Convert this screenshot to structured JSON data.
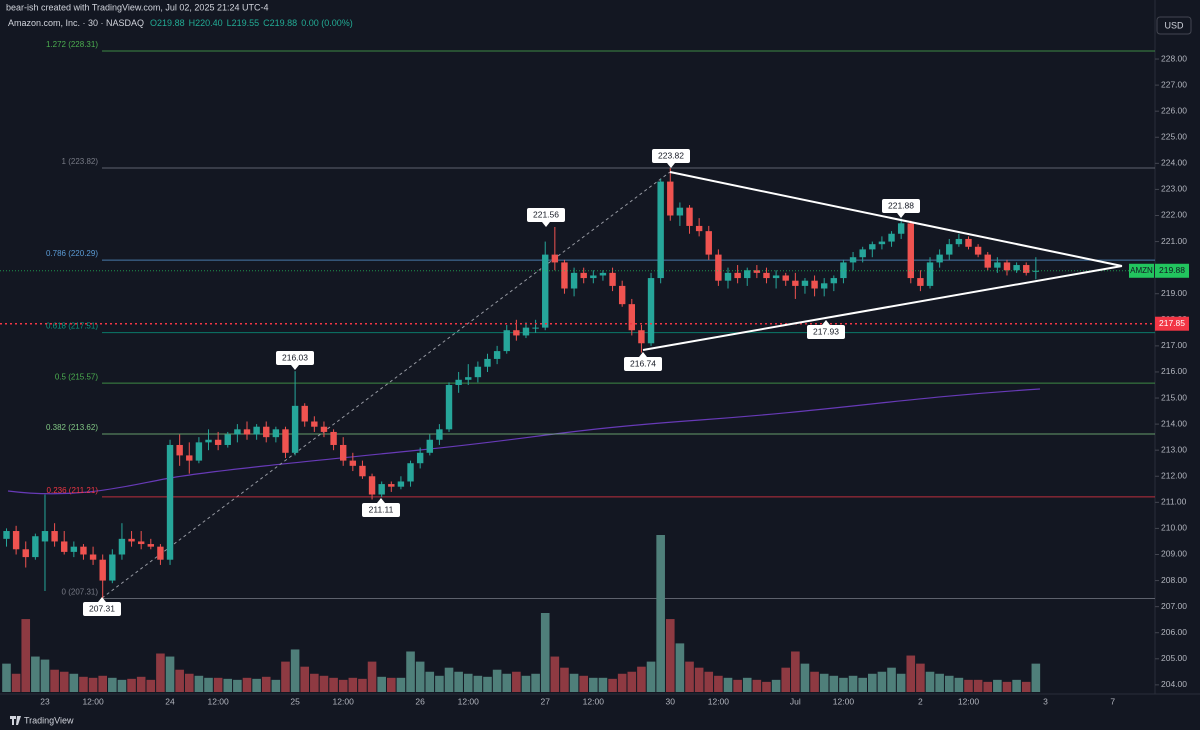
{
  "header": {
    "caption": "bear-ish created with TradingView.com, Jul 02, 2025 21:24 UTC-4",
    "instrument": "Amazon.com, Inc. · 30 · NASDAQ",
    "ohlc": [
      "O219.88",
      "H220.40",
      "L219.55",
      "C219.88",
      "0.00 (0.00%)"
    ],
    "currency": "USD",
    "brand": "TradingView"
  },
  "chart_data": {
    "type": "candlestick",
    "symbol": "AMZN",
    "up_color": "#26a69a",
    "down_color": "#ef5350",
    "volume_up_color": "#4f7f7a",
    "volume_down_color": "#8e3a42",
    "ylim": [
      203.42,
      229.19
    ],
    "yticks": [
      {
        "value": 204,
        "label": "204.00"
      },
      {
        "value": 205,
        "label": "205.00"
      },
      {
        "value": 206,
        "label": "206.00"
      },
      {
        "value": 207,
        "label": "207.00"
      },
      {
        "value": 208,
        "label": "208.00"
      },
      {
        "value": 209,
        "label": "209.00"
      },
      {
        "value": 210,
        "label": "210.00"
      },
      {
        "value": 211,
        "label": "211.00"
      },
      {
        "value": 212,
        "label": "212.00"
      },
      {
        "value": 213,
        "label": "213.00"
      },
      {
        "value": 214,
        "label": "214.00"
      },
      {
        "value": 215,
        "label": "215.00"
      },
      {
        "value": 216,
        "label": "216.00"
      },
      {
        "value": 217,
        "label": "217.00"
      },
      {
        "value": 218,
        "label": "218.00"
      },
      {
        "value": 219,
        "label": "219.00"
      },
      {
        "value": 220,
        "label": "220.00"
      },
      {
        "value": 221,
        "label": "221.00"
      },
      {
        "value": 222,
        "label": "222.00"
      },
      {
        "value": 223,
        "label": "223.00"
      },
      {
        "value": 224,
        "label": "224.00"
      },
      {
        "value": 225,
        "label": "225.00"
      },
      {
        "value": 226,
        "label": "226.00"
      },
      {
        "value": 227,
        "label": "227.00"
      },
      {
        "value": 228,
        "label": "228.00"
      }
    ],
    "categories": [
      null,
      null,
      null,
      null,
      "23",
      null,
      null,
      null,
      null,
      "12:00",
      null,
      null,
      null,
      null,
      null,
      null,
      null,
      "24",
      null,
      null,
      null,
      null,
      "12:00",
      null,
      null,
      null,
      null,
      null,
      null,
      null,
      "25",
      null,
      null,
      null,
      null,
      "12:00",
      null,
      null,
      null,
      null,
      null,
      null,
      null,
      "26",
      null,
      null,
      null,
      null,
      "12:00",
      null,
      null,
      null,
      null,
      null,
      null,
      null,
      "27",
      null,
      null,
      null,
      null,
      "12:00",
      null,
      null,
      null,
      null,
      null,
      null,
      null,
      "30",
      null,
      null,
      null,
      null,
      "12:00",
      null,
      null,
      null,
      null,
      null,
      null,
      null,
      "Jul",
      null,
      null,
      null,
      null,
      "12:00",
      null,
      null,
      null,
      null,
      null,
      null,
      null,
      "2",
      null,
      null,
      null,
      null,
      "12:00",
      null,
      null,
      null,
      null,
      null,
      null,
      null,
      "3",
      null,
      null,
      null,
      null,
      null,
      null,
      "7"
    ],
    "open": [
      209.6,
      209.9,
      209.2,
      208.9,
      209.5,
      209.9,
      209.5,
      209.1,
      209.3,
      209.0,
      208.8,
      208.0,
      209.0,
      209.6,
      209.5,
      209.4,
      209.3,
      208.8,
      213.2,
      212.8,
      212.6,
      213.3,
      213.4,
      213.2,
      213.6,
      213.8,
      213.6,
      213.9,
      213.5,
      213.8,
      212.9,
      214.7,
      214.1,
      213.9,
      213.7,
      213.2,
      212.6,
      212.4,
      212.0,
      211.3,
      211.7,
      211.6,
      211.8,
      212.5,
      212.9,
      213.4,
      213.8,
      215.5,
      215.7,
      215.8,
      216.2,
      216.5,
      216.8,
      217.6,
      217.4,
      217.7,
      217.7,
      220.5,
      220.2,
      219.2,
      219.8,
      219.6,
      219.7,
      219.8,
      219.3,
      218.6,
      217.6,
      217.1,
      219.6,
      223.3,
      222.0,
      222.3,
      221.6,
      221.4,
      220.5,
      219.5,
      219.8,
      219.6,
      219.9,
      219.8,
      219.6,
      219.7,
      219.5,
      219.3,
      219.5,
      219.2,
      219.4,
      219.6,
      220.2,
      220.4,
      220.7,
      220.9,
      221.0,
      221.3,
      221.7,
      219.6,
      219.3,
      220.2,
      220.5,
      220.9,
      221.1,
      220.8,
      220.5,
      220.0,
      220.2,
      219.9,
      220.1,
      219.88,
      null,
      null,
      null,
      null,
      null,
      null,
      null,
      null
    ],
    "high": [
      210.0,
      210.1,
      209.5,
      209.8,
      211.3,
      210.2,
      209.9,
      209.5,
      209.4,
      209.3,
      209.0,
      209.2,
      210.2,
      209.9,
      209.9,
      209.6,
      209.4,
      213.4,
      213.6,
      213.3,
      213.5,
      213.8,
      213.7,
      213.7,
      214.0,
      214.1,
      214.0,
      214.1,
      213.9,
      213.9,
      216.03,
      214.8,
      214.3,
      214.1,
      213.8,
      213.5,
      212.9,
      212.6,
      212.1,
      211.8,
      211.8,
      212.0,
      212.6,
      213.1,
      213.6,
      214.0,
      215.6,
      216.0,
      216.3,
      216.4,
      216.7,
      217.0,
      217.8,
      218.0,
      217.9,
      218.0,
      221.0,
      221.56,
      220.3,
      220.0,
      220.0,
      219.9,
      219.9,
      220.0,
      219.5,
      218.8,
      217.8,
      219.8,
      223.4,
      223.82,
      222.5,
      222.4,
      221.9,
      221.6,
      220.7,
      220.0,
      220.1,
      220.0,
      220.1,
      220.0,
      219.9,
      219.8,
      219.8,
      219.6,
      219.7,
      219.6,
      219.7,
      220.3,
      220.6,
      220.8,
      221.0,
      221.2,
      221.4,
      221.88,
      221.8,
      219.9,
      220.4,
      220.7,
      221.1,
      221.3,
      221.2,
      220.9,
      220.6,
      220.4,
      220.3,
      220.2,
      220.2,
      220.4,
      null,
      null,
      null,
      null,
      null,
      null,
      null,
      null
    ],
    "low": [
      209.3,
      209.0,
      208.5,
      208.8,
      207.6,
      209.3,
      209.0,
      208.9,
      208.8,
      208.6,
      207.31,
      207.9,
      208.8,
      209.3,
      209.2,
      209.2,
      208.6,
      208.6,
      212.4,
      212.1,
      212.5,
      213.0,
      213.0,
      213.1,
      213.3,
      213.4,
      213.4,
      213.3,
      213.3,
      212.7,
      212.8,
      213.9,
      213.7,
      213.5,
      213.0,
      212.4,
      212.2,
      211.9,
      211.11,
      211.2,
      211.4,
      211.5,
      211.6,
      212.3,
      212.8,
      213.2,
      213.7,
      215.2,
      215.5,
      215.6,
      216.0,
      216.3,
      216.7,
      217.2,
      217.3,
      217.5,
      217.6,
      219.9,
      219.0,
      218.9,
      219.4,
      219.4,
      219.5,
      219.1,
      218.5,
      217.4,
      216.74,
      217.0,
      219.4,
      221.8,
      221.6,
      221.3,
      221.2,
      220.3,
      219.3,
      219.2,
      219.4,
      219.3,
      219.6,
      219.4,
      219.2,
      219.3,
      218.8,
      219.0,
      218.9,
      218.9,
      219.1,
      219.4,
      219.9,
      220.2,
      220.4,
      220.7,
      220.8,
      221.1,
      219.4,
      219.1,
      219.2,
      220.0,
      220.3,
      220.8,
      220.7,
      220.4,
      219.9,
      219.8,
      219.7,
      219.8,
      219.7,
      219.55,
      null,
      null,
      null,
      null,
      null,
      null,
      null,
      null
    ],
    "close": [
      209.9,
      209.2,
      208.9,
      209.7,
      209.9,
      209.5,
      209.1,
      209.3,
      209.0,
      208.8,
      208.0,
      209.0,
      209.6,
      209.5,
      209.4,
      209.3,
      208.8,
      213.2,
      212.8,
      212.6,
      213.3,
      213.4,
      213.2,
      213.6,
      213.8,
      213.6,
      213.9,
      213.5,
      213.8,
      212.9,
      214.7,
      214.1,
      213.9,
      213.7,
      213.2,
      212.6,
      212.4,
      212.0,
      211.3,
      211.7,
      211.6,
      211.8,
      212.5,
      212.9,
      213.4,
      213.8,
      215.5,
      215.7,
      215.8,
      216.2,
      216.5,
      216.8,
      217.6,
      217.4,
      217.7,
      217.7,
      220.5,
      220.2,
      219.2,
      219.8,
      219.6,
      219.7,
      219.8,
      219.3,
      218.6,
      217.6,
      217.1,
      219.6,
      223.3,
      222.0,
      222.3,
      221.6,
      221.4,
      220.5,
      219.5,
      219.8,
      219.6,
      219.9,
      219.8,
      219.6,
      219.7,
      219.5,
      219.3,
      219.5,
      219.2,
      219.4,
      219.6,
      220.2,
      220.4,
      220.7,
      220.9,
      221.0,
      221.3,
      221.7,
      219.6,
      219.3,
      220.2,
      220.5,
      220.9,
      221.1,
      220.8,
      220.5,
      220.0,
      220.2,
      219.9,
      220.1,
      219.8,
      219.88,
      null,
      null,
      null,
      null,
      null,
      null,
      null,
      null
    ],
    "volume": [
      28,
      18,
      72,
      35,
      32,
      22,
      20,
      18,
      15,
      14,
      16,
      14,
      12,
      13,
      15,
      12,
      38,
      35,
      22,
      18,
      16,
      14,
      14,
      13,
      12,
      14,
      13,
      15,
      12,
      30,
      42,
      25,
      18,
      16,
      14,
      12,
      14,
      13,
      30,
      15,
      14,
      14,
      40,
      30,
      20,
      16,
      24,
      20,
      18,
      16,
      15,
      22,
      18,
      20,
      16,
      18,
      78,
      35,
      24,
      18,
      16,
      14,
      14,
      13,
      18,
      20,
      25,
      30,
      155,
      72,
      48,
      30,
      24,
      20,
      16,
      14,
      12,
      14,
      12,
      10,
      12,
      24,
      40,
      28,
      20,
      18,
      16,
      14,
      16,
      14,
      18,
      20,
      24,
      18,
      36,
      28,
      20,
      18,
      16,
      14,
      12,
      12,
      10,
      12,
      10,
      12,
      10,
      28,
      null,
      null,
      null,
      null,
      null,
      null,
      null,
      null
    ],
    "fib_levels": [
      {
        "value": 228.31,
        "label": "1.272 (228.31)",
        "color": "#4caf50"
      },
      {
        "value": 223.82,
        "label": "1 (223.82)",
        "color": "#787b86"
      },
      {
        "value": 220.29,
        "label": "0.786 (220.29)",
        "color": "#5b9bd5"
      },
      {
        "value": 217.51,
        "label": "0.618 (217.51)",
        "color": "#089981"
      },
      {
        "value": 215.57,
        "label": "0.5 (215.57)",
        "color": "#4caf50"
      },
      {
        "value": 213.62,
        "label": "0.382 (213.62)",
        "color": "#81c784"
      },
      {
        "value": 211.21,
        "label": "0.236 (211.21)",
        "color": "#f23645"
      },
      {
        "value": 207.31,
        "label": "0 (207.31)",
        "color": "#787b86"
      }
    ],
    "price_labels": [
      207.31,
      216.03,
      211.11,
      221.56,
      216.74,
      223.82,
      217.93,
      221.88
    ],
    "last_price": 219.88,
    "last_price_color": "#22c55e",
    "marked_level": 217.85,
    "marked_level_color": "#f23645"
  }
}
